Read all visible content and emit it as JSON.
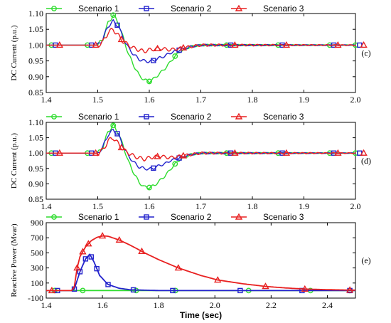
{
  "figure": {
    "legend_entries": [
      "Scenario 1",
      "Scenario 2",
      "Scenario 3"
    ],
    "series_colors": {
      "Scenario 1": "#2fdc2f",
      "Scenario 2": "#2222cc",
      "Scenario 3": "#e82020"
    },
    "series_markers": {
      "Scenario 1": "circle",
      "Scenario 2": "square",
      "Scenario 3": "triangle"
    }
  },
  "chart_data": [
    {
      "type": "line",
      "panel_tag": "(c)",
      "ylabel": "DC Current (p.u.)",
      "xlabel": "",
      "xlim": [
        1.4,
        2.0
      ],
      "ylim": [
        0.85,
        1.1
      ],
      "xticks": [
        "1.4",
        "1.5",
        "1.6",
        "1.7",
        "1.8",
        "1.9",
        "2.0"
      ],
      "yticks": [
        "0.85",
        "0.90",
        "0.95",
        "1.00",
        "1.05",
        "1.10"
      ],
      "legend": "top",
      "grid": false,
      "series": [
        {
          "name": "Scenario 1",
          "x": [
            1.4,
            1.5,
            1.51,
            1.52,
            1.53,
            1.54,
            1.55,
            1.56,
            1.57,
            1.58,
            1.59,
            1.6,
            1.61,
            1.62,
            1.63,
            1.64,
            1.65,
            1.66,
            1.68,
            1.7,
            1.75,
            1.8,
            1.9,
            2.0
          ],
          "y": [
            1.0,
            1.0,
            1.02,
            1.07,
            1.095,
            1.07,
            1.02,
            0.97,
            0.935,
            0.905,
            0.89,
            0.885,
            0.895,
            0.91,
            0.925,
            0.945,
            0.965,
            0.98,
            0.995,
            1.0,
            1.0,
            1.0,
            1.0,
            1.0
          ]
        },
        {
          "name": "Scenario 2",
          "x": [
            1.4,
            1.5,
            1.51,
            1.52,
            1.53,
            1.54,
            1.55,
            1.56,
            1.57,
            1.58,
            1.59,
            1.6,
            1.61,
            1.62,
            1.63,
            1.64,
            1.66,
            1.68,
            1.7,
            1.75,
            1.8,
            1.9,
            2.0
          ],
          "y": [
            1.0,
            1.0,
            1.02,
            1.06,
            1.075,
            1.06,
            1.02,
            0.99,
            0.97,
            0.955,
            0.95,
            0.948,
            0.952,
            0.96,
            0.965,
            0.975,
            0.985,
            0.995,
            1.0,
            1.0,
            1.0,
            1.0,
            1.0
          ]
        },
        {
          "name": "Scenario 3",
          "x": [
            1.4,
            1.5,
            1.51,
            1.52,
            1.53,
            1.54,
            1.55,
            1.56,
            1.57,
            1.58,
            1.59,
            1.6,
            1.62,
            1.64,
            1.66,
            1.68,
            1.7,
            1.75,
            1.8,
            1.9,
            2.0
          ],
          "y": [
            1.0,
            1.0,
            1.01,
            1.04,
            1.05,
            1.03,
            1.01,
            1.0,
            0.99,
            0.985,
            0.98,
            0.985,
            0.99,
            0.985,
            0.99,
            0.995,
            1.0,
            1.0,
            1.0,
            1.0,
            1.0
          ]
        }
      ]
    },
    {
      "type": "line",
      "panel_tag": "(d)",
      "ylabel": "DC Current (p.u.)",
      "xlabel": "",
      "xlim": [
        1.4,
        2.0
      ],
      "ylim": [
        0.85,
        1.1
      ],
      "xticks": [
        "1.4",
        "1.5",
        "1.6",
        "1.7",
        "1.8",
        "1.9",
        "2.0"
      ],
      "yticks": [
        "0.85",
        "0.90",
        "0.95",
        "1.00",
        "1.05",
        "1.10"
      ],
      "legend": "top",
      "grid": false,
      "series": [
        {
          "name": "Scenario 1",
          "x": [
            1.4,
            1.5,
            1.51,
            1.52,
            1.53,
            1.54,
            1.55,
            1.56,
            1.57,
            1.58,
            1.59,
            1.6,
            1.61,
            1.62,
            1.63,
            1.64,
            1.65,
            1.66,
            1.68,
            1.7,
            1.75,
            1.8,
            1.9,
            2.0
          ],
          "y": [
            1.0,
            1.0,
            1.02,
            1.07,
            1.09,
            1.065,
            1.02,
            0.97,
            0.935,
            0.905,
            0.89,
            0.888,
            0.895,
            0.91,
            0.925,
            0.945,
            0.965,
            0.98,
            0.995,
            1.0,
            1.0,
            1.0,
            1.0,
            1.0
          ]
        },
        {
          "name": "Scenario 2",
          "x": [
            1.4,
            1.5,
            1.51,
            1.52,
            1.53,
            1.54,
            1.55,
            1.56,
            1.57,
            1.58,
            1.59,
            1.6,
            1.61,
            1.62,
            1.63,
            1.64,
            1.66,
            1.68,
            1.7,
            1.75,
            1.8,
            1.9,
            2.0
          ],
          "y": [
            1.0,
            1.0,
            1.02,
            1.06,
            1.075,
            1.06,
            1.02,
            0.99,
            0.97,
            0.955,
            0.95,
            0.948,
            0.952,
            0.96,
            0.965,
            0.975,
            0.985,
            0.995,
            1.0,
            1.0,
            1.0,
            1.0,
            1.0
          ]
        },
        {
          "name": "Scenario 3",
          "x": [
            1.4,
            1.5,
            1.51,
            1.52,
            1.53,
            1.54,
            1.55,
            1.56,
            1.57,
            1.58,
            1.59,
            1.6,
            1.62,
            1.64,
            1.66,
            1.68,
            1.7,
            1.75,
            1.8,
            1.9,
            2.0
          ],
          "y": [
            1.0,
            1.0,
            1.01,
            1.04,
            1.05,
            1.03,
            1.01,
            1.0,
            0.99,
            0.985,
            0.98,
            0.985,
            0.99,
            0.985,
            0.99,
            0.995,
            1.0,
            1.0,
            1.0,
            1.0,
            1.0
          ]
        }
      ]
    },
    {
      "type": "line",
      "panel_tag": "(e)",
      "ylabel": "Reactive Power (Mvar)",
      "xlabel": "Time (sec)",
      "xlim": [
        1.4,
        2.5
      ],
      "ylim": [
        -100,
        900
      ],
      "xticks": [
        "1.4",
        "1.6",
        "1.8",
        "2.0",
        "2.2",
        "2.4"
      ],
      "yticks": [
        "-100",
        "100",
        "300",
        "500",
        "700",
        "900"
      ],
      "legend": "top",
      "grid": false,
      "series": [
        {
          "name": "Scenario 1",
          "x": [
            1.4,
            1.5,
            1.6,
            1.8,
            2.0,
            2.2,
            2.4,
            2.5
          ],
          "y": [
            0,
            0,
            0,
            0,
            0,
            0,
            0,
            0
          ]
        },
        {
          "name": "Scenario 2",
          "x": [
            1.4,
            1.49,
            1.5,
            1.52,
            1.54,
            1.555,
            1.57,
            1.59,
            1.62,
            1.66,
            1.7,
            1.8,
            2.0,
            2.2,
            2.4,
            2.5
          ],
          "y": [
            0,
            0,
            20,
            250,
            420,
            480,
            380,
            200,
            80,
            30,
            10,
            0,
            0,
            0,
            0,
            0
          ],
          "marker_x": [
            1.44,
            1.5,
            1.52,
            1.54,
            1.56,
            1.58,
            1.62,
            1.71,
            1.85,
            2.09,
            2.31,
            2.48
          ]
        },
        {
          "name": "Scenario 3",
          "x": [
            1.4,
            1.49,
            1.5,
            1.51,
            1.52,
            1.54,
            1.56,
            1.58,
            1.6,
            1.62,
            1.66,
            1.7,
            1.75,
            1.8,
            1.87,
            1.95,
            2.01,
            2.1,
            2.18,
            2.25,
            2.32,
            2.4,
            2.5
          ],
          "y": [
            0,
            0,
            50,
            300,
            450,
            580,
            660,
            705,
            725,
            720,
            670,
            600,
            500,
            410,
            300,
            200,
            140,
            90,
            55,
            35,
            20,
            12,
            5
          ]
        }
      ]
    }
  ]
}
